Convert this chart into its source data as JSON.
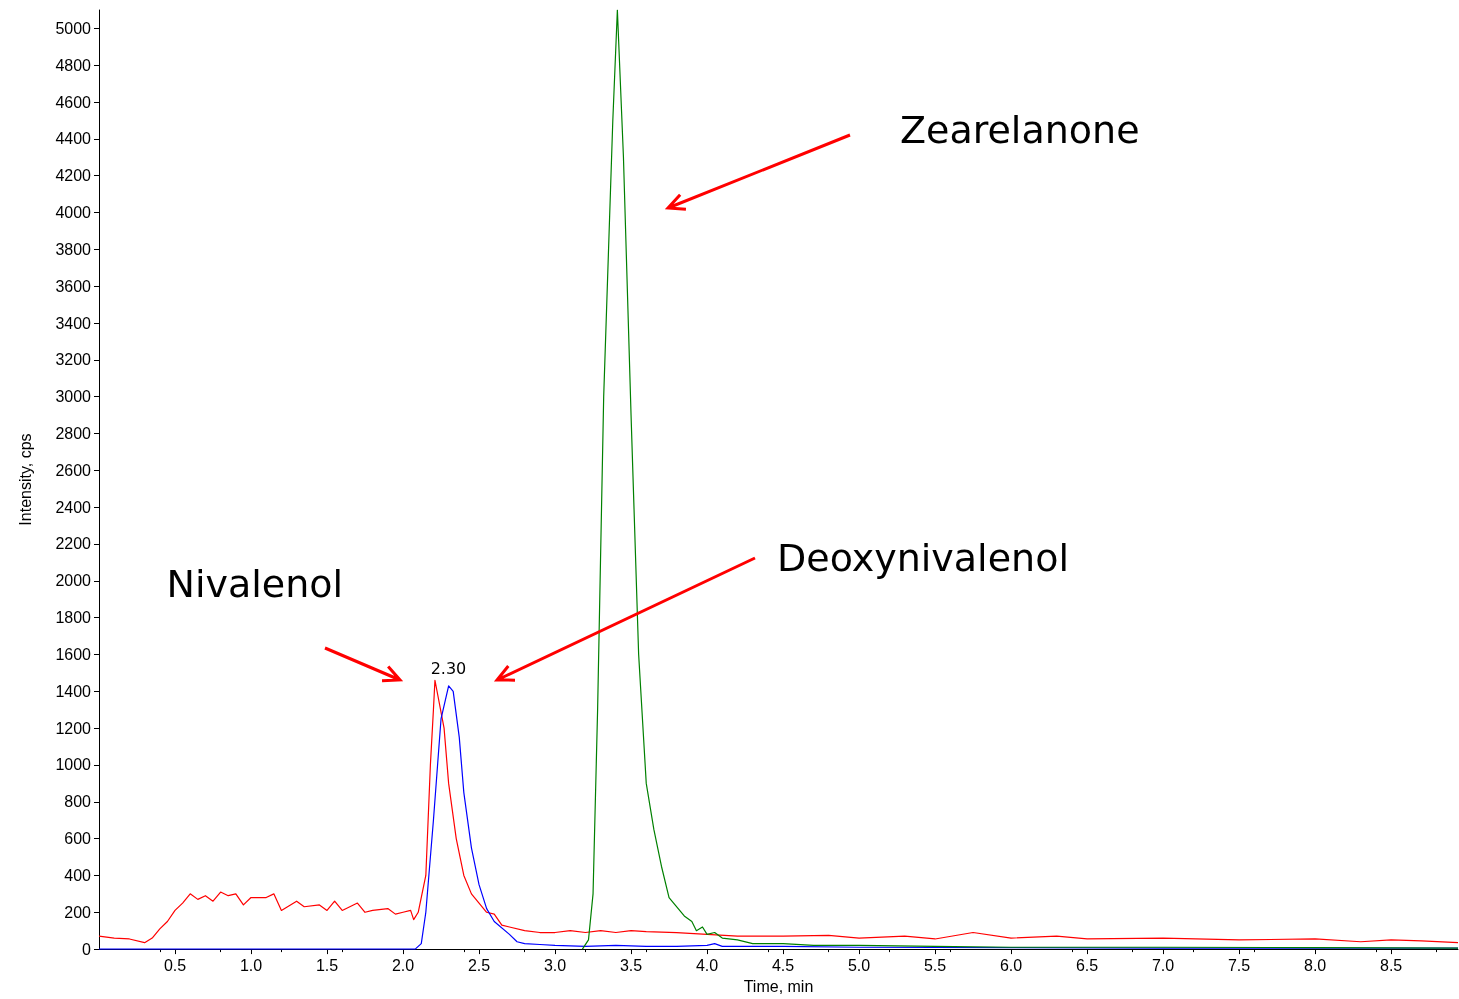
{
  "chart_data": {
    "type": "line",
    "xlabel": "Time, min",
    "ylabel": "Intensity, cps",
    "xlim": [
      0,
      8.94
    ],
    "xticks": [
      0.5,
      {
        "value": 1,
        "label": "1.0"
      },
      1.5,
      {
        "value": 2,
        "label": "2.0"
      },
      2.5,
      {
        "value": 3,
        "label": "3.0"
      },
      3.5,
      {
        "value": 4,
        "label": "4.0"
      },
      4.5,
      {
        "value": 5,
        "label": "5.0"
      },
      5.5,
      {
        "value": 6,
        "label": "6.0"
      },
      6.5,
      {
        "value": 7,
        "label": "7.0"
      },
      7.5,
      {
        "value": 8,
        "label": "8.0"
      },
      8.5
    ],
    "ylim": [
      0,
      5100
    ],
    "yticks": [
      0,
      200,
      400,
      600,
      800,
      1000,
      1200,
      1400,
      1600,
      1800,
      2000,
      2200,
      2400,
      2600,
      2800,
      3000,
      3200,
      3400,
      3600,
      3800,
      4000,
      4200,
      4400,
      4600,
      4800,
      5000
    ],
    "grid": false,
    "marker": "none",
    "line_style": "solid",
    "series": [
      {
        "color": "#ff0000",
        "x": [
          0,
          0.1,
          0.2,
          0.3,
          0.35,
          0.4,
          0.45,
          0.5,
          0.55,
          0.6,
          0.65,
          0.7,
          0.75,
          0.8,
          0.85,
          0.9,
          0.95,
          1.0,
          1.1,
          1.15,
          1.2,
          1.3,
          1.35,
          1.45,
          1.5,
          1.55,
          1.6,
          1.7,
          1.75,
          1.8,
          1.9,
          1.95,
          2.0,
          2.05,
          2.07,
          2.1,
          2.15,
          2.18,
          2.2,
          2.21,
          2.27,
          2.3,
          2.35,
          2.4,
          2.45,
          2.5,
          2.55,
          2.6,
          2.65,
          2.7,
          2.8,
          2.9,
          3.0,
          3.1,
          3.2,
          3.3,
          3.4,
          3.5,
          3.6,
          3.8,
          4.0,
          4.2,
          4.5,
          4.8,
          5.0,
          5.3,
          5.5,
          5.75,
          6.0,
          6.3,
          6.5,
          7.0,
          7.5,
          8.0,
          8.3,
          8.5,
          8.7,
          8.94
        ],
        "values": [
          70,
          60,
          55,
          35,
          60,
          110,
          150,
          210,
          250,
          300,
          270,
          290,
          260,
          310,
          290,
          300,
          240,
          280,
          280,
          300,
          210,
          260,
          230,
          240,
          210,
          260,
          210,
          250,
          200,
          210,
          220,
          190,
          200,
          210,
          160,
          200,
          400,
          1000,
          1300,
          1460,
          1200,
          900,
          600,
          400,
          300,
          250,
          200,
          190,
          130,
          120,
          100,
          90,
          90,
          100,
          90,
          100,
          90,
          100,
          95,
          90,
          80,
          70,
          70,
          75,
          60,
          70,
          55,
          90,
          60,
          70,
          55,
          60,
          50,
          55,
          40,
          50,
          45,
          35
        ]
      },
      {
        "color": "#0000ff",
        "x": [
          0,
          1.0,
          2.08,
          2.12,
          2.15,
          2.2,
          2.25,
          2.3,
          2.33,
          2.37,
          2.4,
          2.45,
          2.5,
          2.55,
          2.6,
          2.7,
          2.75,
          2.8,
          2.9,
          3.0,
          3.2,
          3.4,
          3.6,
          3.8,
          4.0,
          4.05,
          4.1,
          4.5,
          5.0,
          6.0,
          7.0,
          8.0,
          8.94
        ],
        "values": [
          0,
          0,
          0,
          30,
          200,
          700,
          1250,
          1430,
          1400,
          1150,
          850,
          550,
          350,
          220,
          150,
          80,
          40,
          30,
          25,
          20,
          15,
          20,
          15,
          15,
          20,
          30,
          15,
          15,
          10,
          8,
          5,
          5,
          5
        ]
      },
      {
        "color": "#008000",
        "x": [
          3.18,
          3.22,
          3.25,
          3.28,
          3.32,
          3.38,
          3.41,
          3.45,
          3.5,
          3.55,
          3.6,
          3.65,
          3.7,
          3.75,
          3.78,
          3.85,
          3.9,
          3.93,
          3.97,
          4.0,
          4.05,
          4.1,
          4.2,
          4.3,
          4.5,
          4.7,
          5.0,
          5.5,
          6.0,
          7.0,
          8.0,
          8.94
        ],
        "values": [
          0,
          50,
          300,
          1300,
          3000,
          4500,
          5100,
          4300,
          2900,
          1600,
          900,
          650,
          450,
          280,
          250,
          180,
          150,
          100,
          120,
          80,
          90,
          60,
          50,
          30,
          30,
          20,
          20,
          15,
          10,
          10,
          8,
          5
        ]
      }
    ],
    "annotations": [
      {
        "text": "2.30",
        "x": 2.3,
        "y": 1430
      },
      "Nivalenol",
      "Deoxynivalenol",
      "Zearelanone"
    ]
  }
}
